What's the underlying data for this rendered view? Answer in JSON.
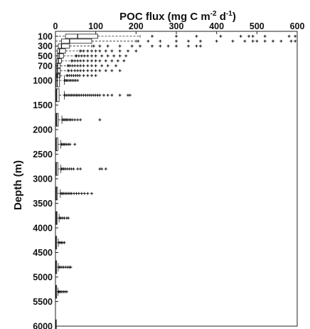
{
  "chart_data": {
    "type": "boxplot",
    "orientation": "horizontal",
    "x_axis_position": "top",
    "y_axis_reversed": true,
    "grid": false,
    "legend": "none",
    "xlabel": {
      "base": "POC flux (mg C m",
      "sup1": "-2",
      "mid": " d",
      "sup2": "-1",
      "end": ")"
    },
    "ylabel": "Depth (m)",
    "xlim": [
      0,
      600
    ],
    "ylim": [
      0,
      6000
    ],
    "xticks": [
      0,
      100,
      200,
      300,
      400,
      500,
      600
    ],
    "yticks": [
      100,
      300,
      500,
      700,
      1000,
      1500,
      2000,
      2500,
      3000,
      3500,
      4000,
      4500,
      5000,
      5500,
      6000
    ],
    "boxes": [
      {
        "depth": 100,
        "q1": 25,
        "median": 55,
        "q3": 105,
        "whisker_low": 0,
        "whisker_high": 210,
        "outliers": [
          240,
          300,
          350,
          410,
          460,
          480,
          490,
          520,
          580,
          595
        ]
      },
      {
        "depth": 200,
        "q1": 15,
        "median": 35,
        "q3": 90,
        "whisker_low": 0,
        "whisker_high": 200,
        "outliers": [
          205,
          230,
          260,
          300,
          330,
          360,
          400,
          440,
          470,
          490,
          500,
          520,
          540,
          560,
          585,
          595
        ]
      },
      {
        "depth": 300,
        "q1": 7,
        "median": 15,
        "q3": 35,
        "whisker_low": 0,
        "whisker_high": 90,
        "outliers": [
          95,
          110,
          130,
          160,
          190,
          210,
          240,
          260,
          280,
          300,
          330,
          350,
          360
        ]
      },
      {
        "depth": 400,
        "q1": 5,
        "median": 10,
        "q3": 25,
        "whisker_low": 0,
        "whisker_high": 60,
        "outliers": [
          63,
          70,
          80,
          90,
          100,
          110,
          125,
          140,
          160,
          180,
          200
        ]
      },
      {
        "depth": 500,
        "q1": 4,
        "median": 9,
        "q3": 20,
        "whisker_low": 0,
        "whisker_high": 50,
        "outliers": [
          52,
          58,
          65,
          72,
          80,
          90,
          100,
          115,
          130,
          145,
          160,
          175
        ]
      },
      {
        "depth": 600,
        "q1": 3,
        "median": 7,
        "q3": 15,
        "whisker_low": 0,
        "whisker_high": 40,
        "outliers": [
          42,
          48,
          55,
          62,
          70,
          80,
          90,
          100,
          110,
          125,
          140,
          155,
          170
        ]
      },
      {
        "depth": 700,
        "q1": 2,
        "median": 5,
        "q3": 12,
        "whisker_low": 0,
        "whisker_high": 30,
        "outliers": [
          32,
          36,
          42,
          48,
          55,
          62,
          70,
          80,
          90,
          100,
          115,
          130,
          150
        ]
      },
      {
        "depth": 800,
        "q1": 2,
        "median": 5,
        "q3": 12,
        "whisker_low": 0,
        "whisker_high": 30,
        "outliers": [
          33,
          40,
          48,
          55,
          62,
          70,
          80,
          90,
          100,
          110,
          125,
          140,
          160
        ]
      },
      {
        "depth": 900,
        "q1": 2,
        "median": 5,
        "q3": 12,
        "whisker_low": 0,
        "whisker_high": 28,
        "outliers": [
          30,
          35,
          40,
          45,
          50,
          55,
          60,
          70,
          80,
          90,
          100
        ]
      },
      {
        "depth": 1000,
        "q1": 1,
        "median": 4,
        "q3": 10,
        "whisker_low": 0,
        "whisker_high": 22,
        "outliers": [
          24,
          27,
          30,
          34,
          38,
          42,
          46,
          50,
          55
        ]
      },
      {
        "depth": 1300,
        "q1": 1,
        "median": 3,
        "q3": 9,
        "whisker_low": 0,
        "whisker_high": 22,
        "outliers": [
          24,
          28,
          32,
          36,
          40,
          44,
          48,
          52,
          56,
          60,
          65,
          70,
          75,
          80,
          85,
          90,
          95,
          100,
          105,
          110,
          120,
          130,
          140,
          160,
          180,
          185
        ]
      },
      {
        "depth": 1800,
        "q1": 1,
        "median": 3,
        "q3": 7,
        "whisker_low": 0,
        "whisker_high": 16,
        "outliers": [
          18,
          21,
          24,
          27,
          30,
          34,
          38,
          42,
          48,
          55,
          62,
          110
        ]
      },
      {
        "depth": 2300,
        "q1": 1,
        "median": 2,
        "q3": 6,
        "whisker_low": 0,
        "whisker_high": 13,
        "outliers": [
          15,
          18,
          21,
          24,
          28,
          32,
          36,
          48
        ]
      },
      {
        "depth": 2800,
        "q1": 1,
        "median": 2,
        "q3": 6,
        "whisker_low": 0,
        "whisker_high": 13,
        "outliers": [
          15,
          18,
          21,
          25,
          30,
          35,
          40,
          45,
          55,
          62,
          110,
          115,
          125
        ]
      },
      {
        "depth": 3300,
        "q1": 1,
        "median": 2,
        "q3": 5,
        "whisker_low": 0,
        "whisker_high": 12,
        "outliers": [
          14,
          17,
          20,
          24,
          28,
          32,
          36,
          40,
          46,
          52,
          58,
          65,
          72,
          80,
          90
        ]
      },
      {
        "depth": 3800,
        "q1": 0.5,
        "median": 2,
        "q3": 4,
        "whisker_low": 0,
        "whisker_high": 9,
        "outliers": [
          11,
          14,
          18,
          22,
          28,
          32
        ]
      },
      {
        "depth": 4300,
        "q1": 0.5,
        "median": 1,
        "q3": 3,
        "whisker_low": 0,
        "whisker_high": 7,
        "outliers": [
          9,
          12,
          15,
          18,
          22
        ]
      },
      {
        "depth": 4800,
        "q1": 0.5,
        "median": 1,
        "q3": 3,
        "whisker_low": 0,
        "whisker_high": 7,
        "outliers": [
          9,
          12,
          16,
          20,
          25,
          30,
          34,
          38
        ]
      },
      {
        "depth": 5300,
        "q1": 0.5,
        "median": 1,
        "q3": 3,
        "whisker_low": 0,
        "whisker_high": 6,
        "outliers": [
          8,
          10,
          13,
          16,
          20,
          24,
          28
        ]
      },
      {
        "depth": 6000,
        "q1": 0,
        "median": 0.5,
        "q3": 1,
        "whisker_low": 0,
        "whisker_high": 2,
        "outliers": []
      }
    ]
  }
}
